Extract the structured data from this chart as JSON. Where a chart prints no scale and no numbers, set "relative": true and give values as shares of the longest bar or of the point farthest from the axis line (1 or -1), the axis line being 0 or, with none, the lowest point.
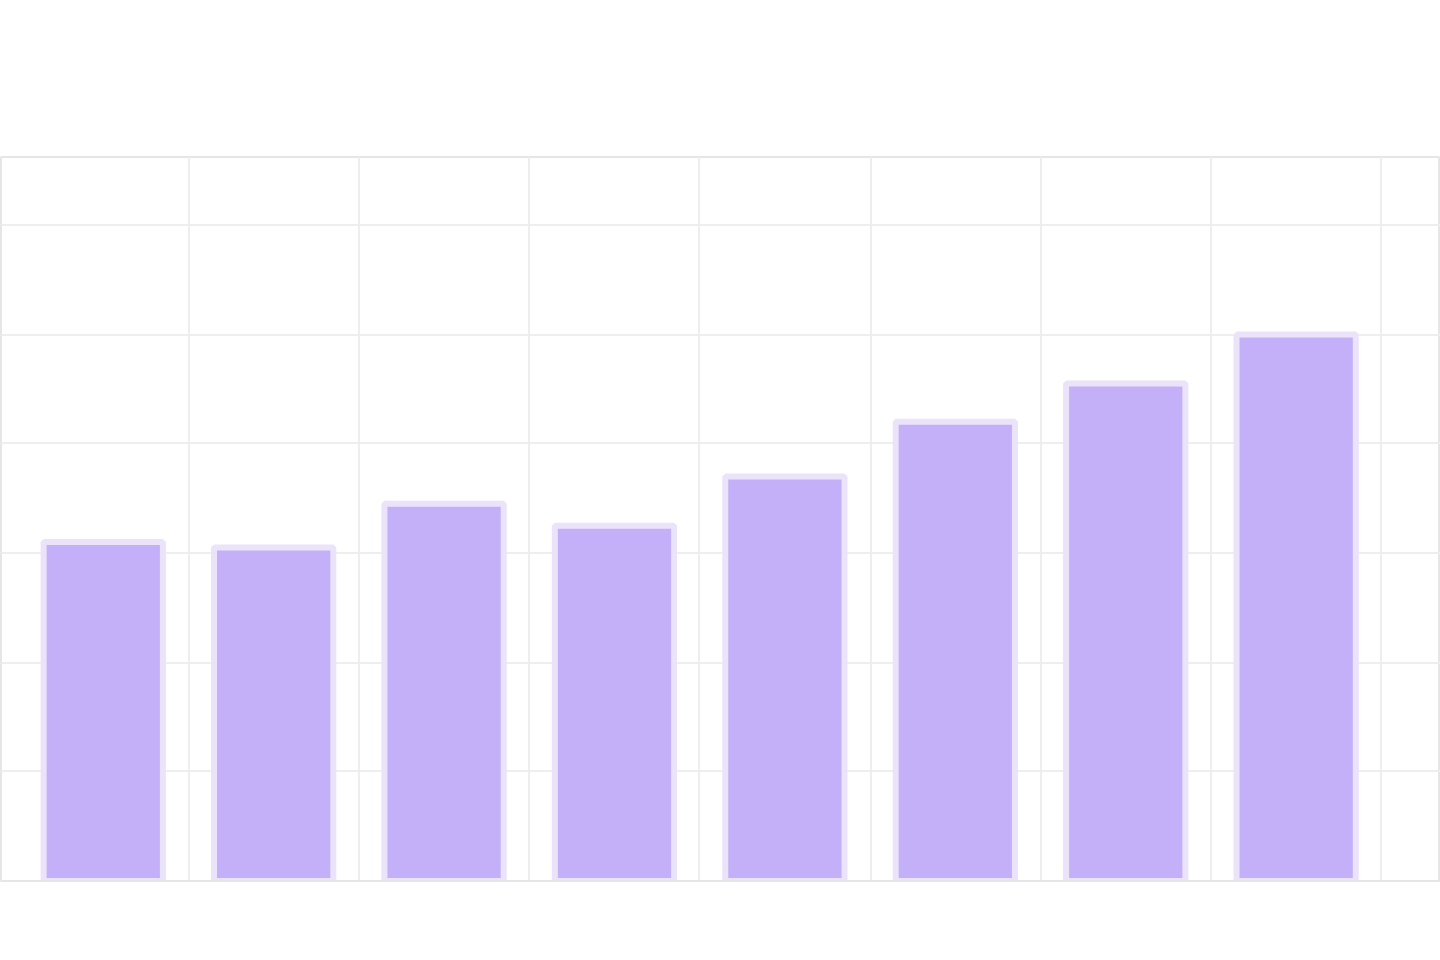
{
  "chart_data": {
    "type": "bar",
    "relative": true,
    "categories": [
      null,
      null,
      null,
      null,
      null,
      null,
      null,
      null
    ],
    "values": [
      0.62,
      0.61,
      0.69,
      0.65,
      0.74,
      0.84,
      0.91,
      1.0
    ],
    "color": "#c4b0f8",
    "grid": true
  }
}
